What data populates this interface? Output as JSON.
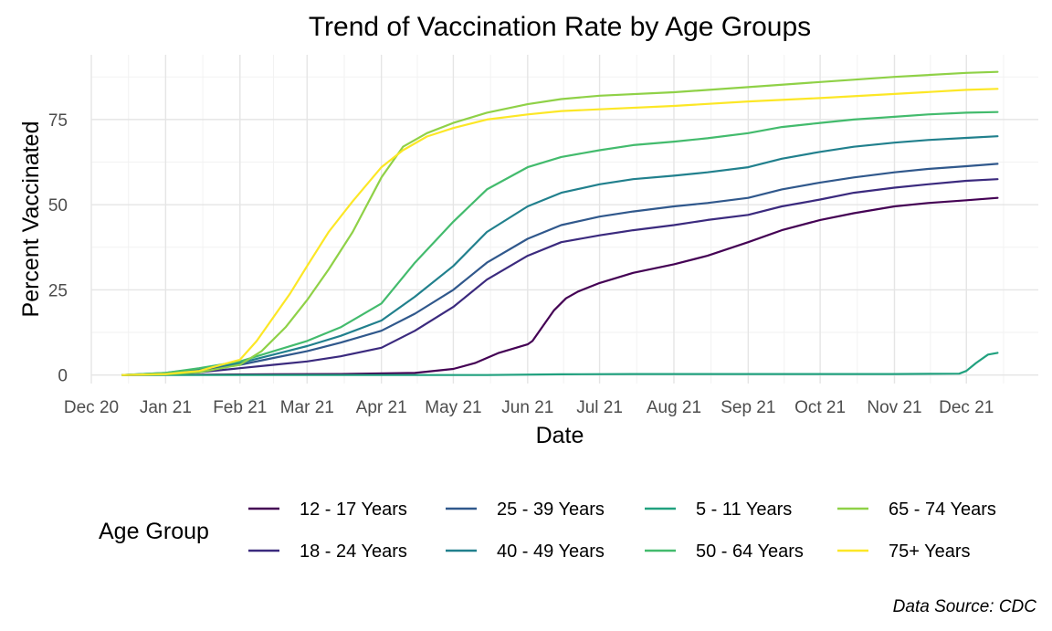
{
  "chart_data": {
    "type": "line",
    "title": "Trend of Vaccination Rate by Age Groups",
    "xlabel": "Date",
    "ylabel": "Percent Vaccinated",
    "caption": "Data Source: CDC",
    "legend": {
      "title": "Age Group",
      "position": "bottom"
    },
    "grid": true,
    "x_range": [
      "2020-12-01",
      "2021-12-31"
    ],
    "ylim": [
      -2.5,
      94
    ],
    "x_ticks": [
      {
        "date": "2020-12-01",
        "label": "Dec 20"
      },
      {
        "date": "2021-01-01",
        "label": "Jan 21"
      },
      {
        "date": "2021-02-01",
        "label": "Feb 21"
      },
      {
        "date": "2021-03-01",
        "label": "Mar 21"
      },
      {
        "date": "2021-04-01",
        "label": "Apr 21"
      },
      {
        "date": "2021-05-01",
        "label": "May 21"
      },
      {
        "date": "2021-06-01",
        "label": "Jun 21"
      },
      {
        "date": "2021-07-01",
        "label": "Jul 21"
      },
      {
        "date": "2021-08-01",
        "label": "Aug 21"
      },
      {
        "date": "2021-09-01",
        "label": "Sep 21"
      },
      {
        "date": "2021-10-01",
        "label": "Oct 21"
      },
      {
        "date": "2021-11-01",
        "label": "Nov 21"
      },
      {
        "date": "2021-12-01",
        "label": "Dec 21"
      }
    ],
    "y_ticks": [
      0,
      25,
      50,
      75
    ],
    "series": [
      {
        "name": "12 - 17 Years",
        "color": "#440154",
        "x": [
          "2020-12-14",
          "2021-01-15",
          "2021-02-15",
          "2021-03-15",
          "2021-04-15",
          "2021-05-01",
          "2021-05-10",
          "2021-05-20",
          "2021-06-01",
          "2021-06-03",
          "2021-06-07",
          "2021-06-12",
          "2021-06-17",
          "2021-06-22",
          "2021-07-01",
          "2021-07-15",
          "2021-08-01",
          "2021-08-15",
          "2021-09-01",
          "2021-09-15",
          "2021-10-01",
          "2021-10-15",
          "2021-11-01",
          "2021-11-15",
          "2021-12-01",
          "2021-12-14"
        ],
        "y": [
          0,
          0.1,
          0.2,
          0.3,
          0.6,
          1.8,
          3.5,
          6.5,
          9,
          10,
          14,
          19,
          22.5,
          24.5,
          27,
          30,
          32.5,
          35,
          39,
          42.5,
          45.5,
          47.5,
          49.5,
          50.5,
          51.3,
          52
        ]
      },
      {
        "name": "18 - 24 Years",
        "color": "#3b2a7e",
        "x": [
          "2020-12-14",
          "2021-01-01",
          "2021-01-15",
          "2021-02-01",
          "2021-02-15",
          "2021-03-01",
          "2021-03-15",
          "2021-04-01",
          "2021-04-15",
          "2021-05-01",
          "2021-05-15",
          "2021-06-01",
          "2021-06-15",
          "2021-07-01",
          "2021-07-15",
          "2021-08-01",
          "2021-08-15",
          "2021-09-01",
          "2021-09-15",
          "2021-10-01",
          "2021-10-15",
          "2021-11-01",
          "2021-11-15",
          "2021-12-01",
          "2021-12-14"
        ],
        "y": [
          0,
          0.2,
          0.8,
          2,
          3,
          4,
          5.5,
          8,
          13,
          20,
          28,
          35,
          39,
          41,
          42.5,
          44,
          45.5,
          47,
          49.5,
          51.5,
          53.5,
          55,
          56,
          57,
          57.5
        ]
      },
      {
        "name": "25 - 39 Years",
        "color": "#30588c",
        "x": [
          "2020-12-14",
          "2021-01-01",
          "2021-01-15",
          "2021-02-01",
          "2021-02-15",
          "2021-03-01",
          "2021-03-15",
          "2021-04-01",
          "2021-04-15",
          "2021-05-01",
          "2021-05-15",
          "2021-06-01",
          "2021-06-15",
          "2021-07-01",
          "2021-07-15",
          "2021-08-01",
          "2021-08-15",
          "2021-09-01",
          "2021-09-15",
          "2021-10-01",
          "2021-10-15",
          "2021-11-01",
          "2021-11-15",
          "2021-12-01",
          "2021-12-14"
        ],
        "y": [
          0,
          0.5,
          1.5,
          3,
          5,
          7,
          9.5,
          13,
          18,
          25,
          33,
          40,
          44,
          46.5,
          48,
          49.5,
          50.5,
          52,
          54.5,
          56.5,
          58,
          59.5,
          60.5,
          61.3,
          62
        ]
      },
      {
        "name": "40 - 49 Years",
        "color": "#21808d",
        "x": [
          "2020-12-14",
          "2021-01-01",
          "2021-01-15",
          "2021-02-01",
          "2021-02-15",
          "2021-03-01",
          "2021-03-15",
          "2021-04-01",
          "2021-04-15",
          "2021-05-01",
          "2021-05-15",
          "2021-06-01",
          "2021-06-15",
          "2021-07-01",
          "2021-07-15",
          "2021-08-01",
          "2021-08-15",
          "2021-09-01",
          "2021-09-15",
          "2021-10-01",
          "2021-10-15",
          "2021-11-01",
          "2021-11-15",
          "2021-12-01",
          "2021-12-14"
        ],
        "y": [
          0,
          0.6,
          1.8,
          3.5,
          6,
          8.5,
          11.5,
          16,
          23,
          32,
          42,
          49.5,
          53.5,
          56,
          57.5,
          58.5,
          59.5,
          61,
          63.5,
          65.5,
          67,
          68.2,
          69,
          69.6,
          70.1
        ]
      },
      {
        "name": "5 - 11 Years",
        "color": "#21a17f",
        "x": [
          "2020-12-14",
          "2021-05-15",
          "2021-06-15",
          "2021-07-15",
          "2021-10-15",
          "2021-11-01",
          "2021-11-28",
          "2021-12-01",
          "2021-12-05",
          "2021-12-10",
          "2021-12-14"
        ],
        "y": [
          0,
          0,
          0.2,
          0.3,
          0.3,
          0.3,
          0.4,
          1.2,
          3.5,
          6,
          6.5
        ]
      },
      {
        "name": "50 - 64 Years",
        "color": "#43bb6d",
        "x": [
          "2020-12-14",
          "2021-01-01",
          "2021-01-15",
          "2021-02-01",
          "2021-02-15",
          "2021-03-01",
          "2021-03-15",
          "2021-04-01",
          "2021-04-15",
          "2021-05-01",
          "2021-05-15",
          "2021-06-01",
          "2021-06-15",
          "2021-07-01",
          "2021-07-15",
          "2021-08-01",
          "2021-08-15",
          "2021-09-01",
          "2021-09-15",
          "2021-10-01",
          "2021-10-15",
          "2021-11-01",
          "2021-11-15",
          "2021-12-01",
          "2021-12-14"
        ],
        "y": [
          0,
          0.6,
          2,
          4,
          7,
          10,
          14,
          21,
          33,
          45,
          54.5,
          61,
          64,
          66,
          67.5,
          68.5,
          69.5,
          71,
          72.8,
          74,
          75,
          75.8,
          76.5,
          77,
          77.2
        ]
      },
      {
        "name": "65 - 74 Years",
        "color": "#8fd147",
        "x": [
          "2020-12-14",
          "2021-01-01",
          "2021-01-15",
          "2021-02-01",
          "2021-02-10",
          "2021-02-20",
          "2021-03-01",
          "2021-03-10",
          "2021-03-20",
          "2021-04-01",
          "2021-04-10",
          "2021-04-20",
          "2021-05-01",
          "2021-05-15",
          "2021-06-01",
          "2021-06-15",
          "2021-07-01",
          "2021-08-01",
          "2021-09-01",
          "2021-10-01",
          "2021-11-01",
          "2021-12-01",
          "2021-12-14"
        ],
        "y": [
          0,
          0.2,
          0.8,
          3,
          7,
          14,
          22,
          31,
          42,
          58,
          67,
          71,
          74,
          77,
          79.5,
          81,
          82,
          83,
          84.5,
          86,
          87.5,
          88.7,
          89
        ]
      },
      {
        "name": "75+ Years",
        "color": "#fce726",
        "x": [
          "2020-12-14",
          "2021-01-01",
          "2021-01-15",
          "2021-02-01",
          "2021-02-08",
          "2021-02-15",
          "2021-02-22",
          "2021-03-01",
          "2021-03-10",
          "2021-03-20",
          "2021-04-01",
          "2021-04-10",
          "2021-04-20",
          "2021-05-01",
          "2021-05-15",
          "2021-06-01",
          "2021-06-15",
          "2021-07-01",
          "2021-08-01",
          "2021-09-01",
          "2021-10-01",
          "2021-11-01",
          "2021-12-01",
          "2021-12-14"
        ],
        "y": [
          0,
          0.3,
          1.2,
          4.5,
          10,
          17,
          24,
          32,
          42,
          51,
          61,
          66,
          70,
          72.5,
          75,
          76.5,
          77.5,
          78,
          79,
          80.3,
          81.3,
          82.5,
          83.7,
          84
        ]
      }
    ]
  }
}
